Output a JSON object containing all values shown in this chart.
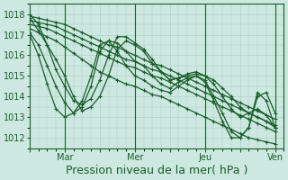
{
  "xlabel": "Pression niveau de la mer( hPa )",
  "background_color": "#cce8e0",
  "grid_color": "#aacccc",
  "line_color": "#1a5e2a",
  "ylim": [
    1011.5,
    1018.5
  ],
  "yticks": [
    1012,
    1013,
    1014,
    1015,
    1016,
    1017,
    1018
  ],
  "xtick_labels": [
    "",
    "Mar",
    "",
    "Mer",
    "",
    "Jeu",
    "",
    "Ven"
  ],
  "xtick_positions": [
    0,
    24,
    48,
    72,
    96,
    120,
    144,
    168
  ],
  "day_lines": [
    24,
    72,
    120,
    168
  ],
  "xlim": [
    0,
    174
  ],
  "lines": [
    {
      "x": [
        0,
        6,
        12,
        18,
        24,
        30,
        36,
        42,
        48,
        54,
        60,
        66,
        72,
        78,
        84,
        90,
        96,
        102,
        108,
        114,
        120,
        126,
        132,
        138,
        144,
        150,
        156,
        162,
        168
      ],
      "y": [
        1017.9,
        1017.8,
        1017.7,
        1017.6,
        1017.5,
        1017.3,
        1017.1,
        1016.9,
        1016.7,
        1016.5,
        1016.4,
        1016.2,
        1016.0,
        1015.8,
        1015.6,
        1015.5,
        1015.3,
        1015.1,
        1014.9,
        1014.7,
        1014.5,
        1014.3,
        1014.1,
        1013.9,
        1013.7,
        1013.5,
        1013.3,
        1013.1,
        1012.9
      ]
    },
    {
      "x": [
        0,
        6,
        12,
        18,
        24,
        30,
        36,
        42,
        48,
        54,
        60,
        66,
        72,
        78,
        84,
        90,
        96,
        102,
        108,
        114,
        120,
        126,
        132,
        138,
        144,
        150,
        156,
        162,
        168
      ],
      "y": [
        1017.7,
        1017.6,
        1017.5,
        1017.4,
        1017.2,
        1017.0,
        1016.8,
        1016.6,
        1016.4,
        1016.2,
        1016.0,
        1015.8,
        1015.7,
        1015.5,
        1015.3,
        1015.2,
        1015.0,
        1014.8,
        1014.6,
        1014.4,
        1014.2,
        1014.0,
        1013.8,
        1013.6,
        1013.4,
        1013.2,
        1013.0,
        1012.8,
        1012.6
      ]
    },
    {
      "x": [
        0,
        6,
        12,
        18,
        24,
        30,
        36,
        42,
        48,
        54,
        60,
        66,
        72,
        78,
        84,
        90,
        96,
        102,
        108,
        114,
        120,
        126,
        132,
        138,
        144,
        150,
        156,
        162,
        168
      ],
      "y": [
        1017.5,
        1017.4,
        1017.3,
        1017.1,
        1016.9,
        1016.7,
        1016.5,
        1016.3,
        1016.1,
        1015.9,
        1015.7,
        1015.5,
        1015.4,
        1015.2,
        1015.0,
        1014.9,
        1014.7,
        1014.5,
        1014.3,
        1014.1,
        1013.9,
        1013.7,
        1013.5,
        1013.3,
        1013.1,
        1012.9,
        1012.7,
        1012.5,
        1012.3
      ]
    },
    {
      "x": [
        0,
        6,
        12,
        18,
        24,
        30,
        36,
        42,
        48,
        54,
        60,
        66,
        72,
        78,
        84,
        90,
        96,
        102,
        108,
        114,
        120,
        126,
        132,
        138,
        144,
        150,
        156,
        162,
        168
      ],
      "y": [
        1017.3,
        1017.1,
        1016.9,
        1016.7,
        1016.4,
        1016.1,
        1015.8,
        1015.5,
        1015.2,
        1015.0,
        1014.8,
        1014.6,
        1014.5,
        1014.3,
        1014.1,
        1014.0,
        1013.8,
        1013.6,
        1013.4,
        1013.2,
        1013.0,
        1012.8,
        1012.6,
        1012.4,
        1012.2,
        1012.0,
        1011.9,
        1011.8,
        1011.7
      ]
    },
    {
      "x": [
        0,
        6,
        12,
        18,
        24,
        30,
        36,
        42,
        48,
        54,
        60,
        66,
        72,
        78,
        84,
        90,
        96,
        102,
        108,
        114,
        120,
        126,
        132,
        138,
        144,
        150,
        156,
        162,
        168
      ],
      "y": [
        1017.8,
        1017.2,
        1016.5,
        1015.8,
        1015.0,
        1014.0,
        1013.3,
        1013.5,
        1014.0,
        1015.0,
        1016.3,
        1016.7,
        1016.5,
        1016.2,
        1015.6,
        1015.2,
        1014.8,
        1014.9,
        1015.0,
        1015.1,
        1015.0,
        1014.8,
        1014.4,
        1014.0,
        1013.5,
        1013.2,
        1013.0,
        1012.8,
        1012.5
      ]
    },
    {
      "x": [
        0,
        6,
        12,
        18,
        24,
        30,
        36,
        42,
        48,
        54,
        60,
        66,
        72,
        78,
        84,
        90,
        96,
        102,
        108,
        114,
        120,
        126,
        132,
        138,
        144,
        150,
        156,
        162,
        168
      ],
      "y": [
        1018.0,
        1017.5,
        1016.5,
        1015.3,
        1014.5,
        1013.8,
        1013.6,
        1013.9,
        1014.8,
        1016.0,
        1016.9,
        1016.9,
        1016.6,
        1016.3,
        1015.8,
        1015.2,
        1014.8,
        1014.9,
        1015.1,
        1015.2,
        1015.0,
        1014.6,
        1014.0,
        1013.4,
        1013.0,
        1013.2,
        1013.4,
        1013.1,
        1012.5
      ]
    },
    {
      "x": [
        0,
        6,
        12,
        18,
        24,
        30,
        36,
        42,
        48,
        54,
        60,
        66,
        72,
        78,
        84,
        90,
        96,
        102,
        108,
        114,
        120,
        126,
        132,
        138,
        144,
        150,
        156,
        162,
        168
      ],
      "y": [
        1017.1,
        1016.5,
        1015.5,
        1014.5,
        1013.7,
        1013.2,
        1013.5,
        1014.5,
        1016.2,
        1016.7,
        1016.6,
        1016.2,
        1015.7,
        1015.5,
        1015.0,
        1014.6,
        1014.4,
        1014.7,
        1014.9,
        1015.0,
        1014.8,
        1014.0,
        1013.2,
        1012.3,
        1012.0,
        1012.5,
        1014.0,
        1014.2,
        1013.2
      ]
    },
    {
      "x": [
        0,
        6,
        12,
        18,
        24,
        30,
        36,
        42,
        48,
        54,
        60,
        66,
        72,
        78,
        84,
        90,
        96,
        102,
        108,
        114,
        120,
        126,
        132,
        138,
        144,
        150,
        156,
        162,
        168
      ],
      "y": [
        1017.0,
        1016.0,
        1014.6,
        1013.4,
        1013.0,
        1013.2,
        1013.8,
        1015.0,
        1016.5,
        1016.7,
        1016.2,
        1015.5,
        1015.0,
        1014.8,
        1014.5,
        1014.3,
        1014.2,
        1014.5,
        1014.8,
        1015.0,
        1014.7,
        1013.8,
        1012.8,
        1012.0,
        1012.0,
        1012.5,
        1014.2,
        1013.8,
        1012.5
      ]
    }
  ],
  "marker": "+",
  "markersize": 3,
  "linewidth": 0.9,
  "tick_fontsize": 7,
  "xlabel_fontsize": 9
}
